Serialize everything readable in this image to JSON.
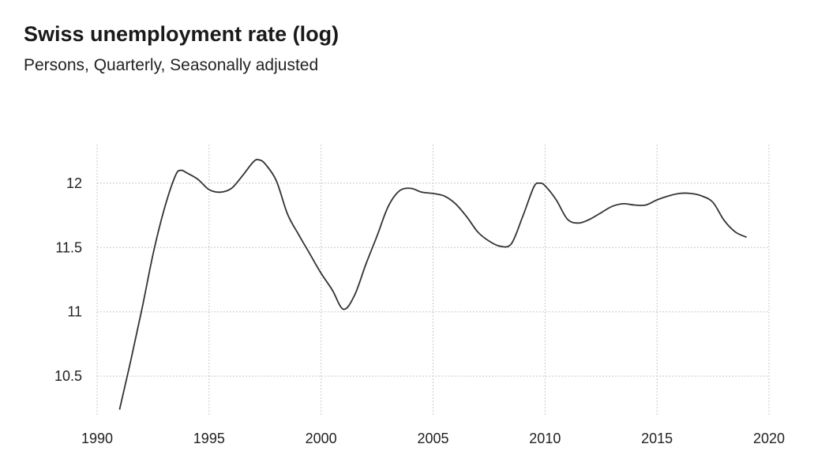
{
  "chart_data": {
    "type": "line",
    "title": "Swiss unemployment rate (log)",
    "subtitle": "Persons, Quarterly, Seasonally adjusted",
    "xlabel": "",
    "ylabel": "",
    "xlim": [
      1990,
      2020
    ],
    "ylim": [
      10.2,
      12.3
    ],
    "x_ticks": [
      1990,
      1995,
      2000,
      2005,
      2010,
      2015,
      2020
    ],
    "y_ticks": [
      10.5,
      11,
      11.5,
      12
    ],
    "grid": true,
    "legend": "none",
    "line_color": "#333333",
    "series": [
      {
        "x": [
          1991.0,
          1991.5,
          1992.0,
          1992.5,
          1993.0,
          1993.5,
          1993.75,
          1994.0,
          1994.5,
          1995.0,
          1995.5,
          1996.0,
          1996.5,
          1997.0,
          1997.25,
          1997.5,
          1998.0,
          1998.5,
          1999.0,
          1999.5,
          2000.0,
          2000.5,
          2001.0,
          2001.5,
          2002.0,
          2002.5,
          2003.0,
          2003.5,
          2004.0,
          2004.5,
          2005.0,
          2005.5,
          2006.0,
          2006.5,
          2007.0,
          2007.5,
          2008.0,
          2008.5,
          2009.0,
          2009.5,
          2009.75,
          2010.0,
          2010.5,
          2011.0,
          2011.5,
          2012.0,
          2012.5,
          2013.0,
          2013.5,
          2014.0,
          2014.5,
          2015.0,
          2015.5,
          2016.0,
          2016.5,
          2017.0,
          2017.5,
          2018.0,
          2018.5,
          2019.0
        ],
        "y": [
          10.24,
          10.62,
          11.02,
          11.45,
          11.8,
          12.06,
          12.1,
          12.08,
          12.03,
          11.95,
          11.93,
          11.96,
          12.06,
          12.17,
          12.18,
          12.15,
          12.02,
          11.76,
          11.6,
          11.45,
          11.3,
          11.17,
          11.02,
          11.13,
          11.37,
          11.59,
          11.82,
          11.94,
          11.96,
          11.93,
          11.92,
          11.9,
          11.84,
          11.74,
          11.62,
          11.55,
          11.51,
          11.53,
          11.74,
          11.97,
          12.0,
          11.98,
          11.87,
          11.72,
          11.69,
          11.72,
          11.77,
          11.82,
          11.84,
          11.83,
          11.83,
          11.87,
          11.9,
          11.92,
          11.92,
          11.9,
          11.85,
          11.71,
          11.62,
          11.58
        ]
      }
    ]
  }
}
